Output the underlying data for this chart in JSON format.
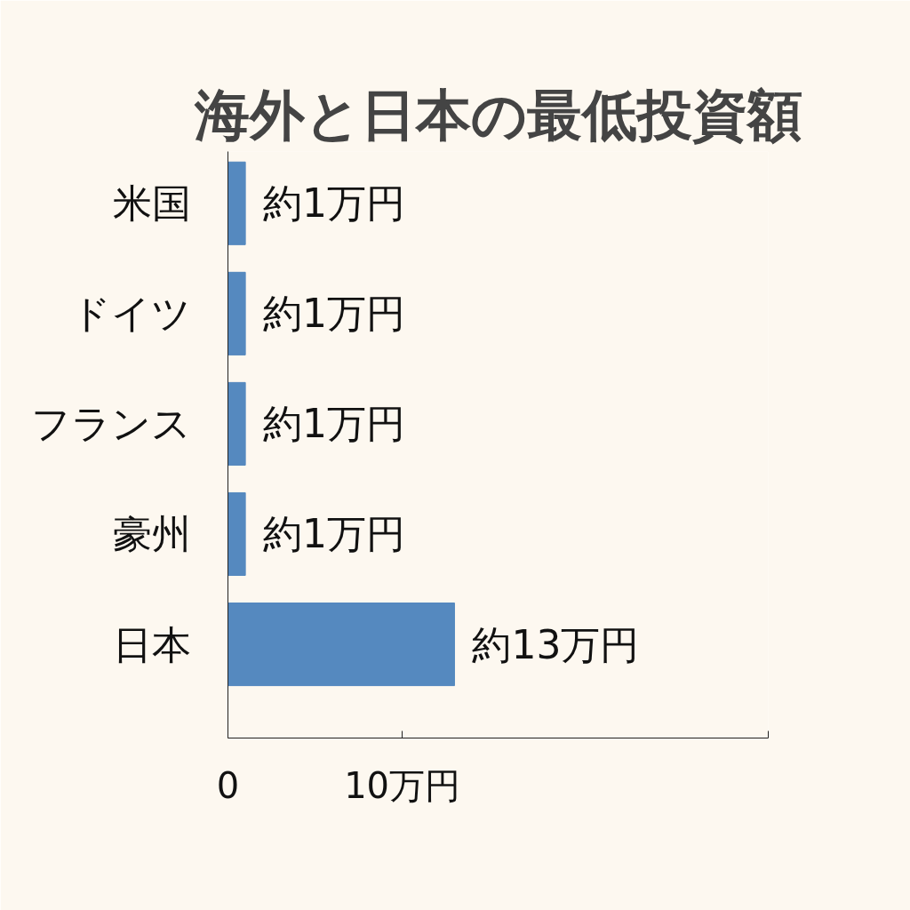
{
  "chart_data": {
    "type": "bar",
    "orientation": "horizontal",
    "title": "海外と日本の最低投資額",
    "categories": [
      "米国",
      "ドイツ",
      "フランス",
      "豪州",
      "日本"
    ],
    "values": [
      1,
      1,
      1,
      1,
      13
    ],
    "value_labels": [
      "約1万円",
      "約1万円",
      "約1万円",
      "約1万円",
      "約13万円"
    ],
    "color": "#5589bf",
    "xlim": [
      0,
      31
    ],
    "xticks": [
      0,
      {
        "value": 10,
        "label": "10万円"
      },
      {
        "value": 31,
        "label": null
      }
    ]
  }
}
